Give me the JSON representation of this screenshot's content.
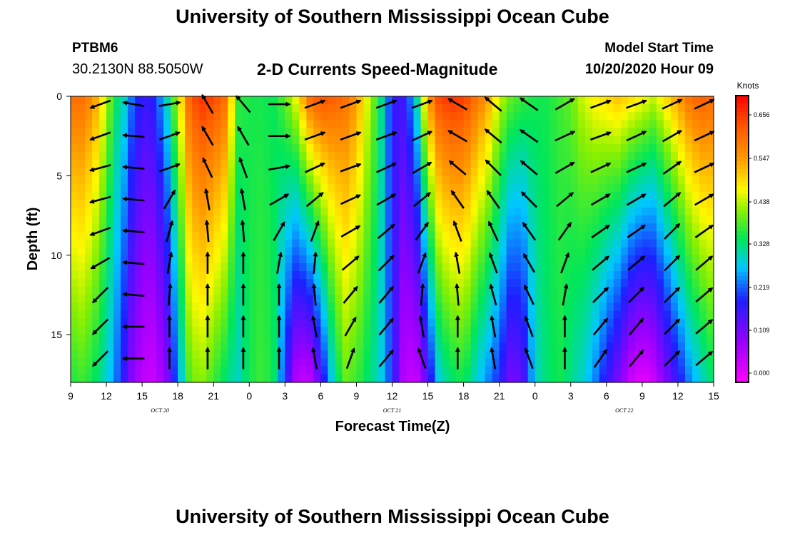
{
  "header": {
    "title": "University of Southern Mississippi Ocean Cube",
    "station_id": "PTBM6",
    "station_location": "30.2130N 88.5050W",
    "plot_title": "2-D Currents Speed-Magnitude",
    "model_start_label": "Model Start Time",
    "model_start_time": "10/20/2020 Hour 09"
  },
  "footer": {
    "title": "University of Southern Mississippi Ocean Cube"
  },
  "chart_data": {
    "type": "heatmap",
    "xlabel": "Forecast Time(Z)",
    "ylabel": "Depth (ft)",
    "x_range_hours": [
      0,
      54
    ],
    "x_ticks": [
      "9",
      "12",
      "15",
      "18",
      "21",
      "0",
      "3",
      "6",
      "9",
      "12",
      "15",
      "18",
      "21",
      "0",
      "3",
      "6",
      "9",
      "12",
      "15"
    ],
    "date_labels": [
      {
        "label": "OCT 20",
        "hour": 7.5
      },
      {
        "label": "OCT 21",
        "hour": 27
      },
      {
        "label": "OCT 22",
        "hour": 46.5
      }
    ],
    "y_range_ft": [
      0,
      18
    ],
    "y_ticks": [
      0,
      5,
      10,
      15
    ],
    "colorbar": {
      "unit": "Knots",
      "ticks": [
        "0.656",
        "0.547",
        "0.438",
        "0.328",
        "0.219",
        "0.109",
        "0.000"
      ],
      "range": [
        0.0,
        0.7
      ]
    },
    "speed_profile": {
      "hours": [
        0,
        1,
        2,
        3,
        3.7,
        4.3,
        5,
        6,
        7,
        8,
        9,
        10,
        11,
        12,
        13,
        14,
        15,
        16,
        17,
        18,
        19,
        20,
        21,
        22,
        23,
        24,
        25,
        26,
        27,
        28,
        29,
        30,
        31,
        32,
        33,
        34,
        35,
        36,
        37,
        38,
        39,
        40,
        41,
        42,
        43,
        44,
        45,
        46,
        47,
        48,
        49,
        50,
        51,
        52,
        53,
        54
      ],
      "surface": [
        0.6,
        0.6,
        0.55,
        0.45,
        0.35,
        0.33,
        0.25,
        0.18,
        0.2,
        0.3,
        0.45,
        0.62,
        0.66,
        0.64,
        0.6,
        0.38,
        0.36,
        0.36,
        0.35,
        0.4,
        0.48,
        0.6,
        0.64,
        0.62,
        0.6,
        0.55,
        0.45,
        0.35,
        0.18,
        0.18,
        0.3,
        0.55,
        0.65,
        0.66,
        0.65,
        0.6,
        0.55,
        0.45,
        0.4,
        0.38,
        0.36,
        0.36,
        0.38,
        0.4,
        0.45,
        0.48,
        0.5,
        0.52,
        0.5,
        0.48,
        0.45,
        0.5,
        0.55,
        0.6,
        0.62,
        0.6
      ],
      "bottom": [
        0.36,
        0.38,
        0.35,
        0.3,
        0.25,
        0.2,
        0.12,
        0.06,
        0.05,
        0.1,
        0.25,
        0.4,
        0.42,
        0.38,
        0.34,
        0.3,
        0.36,
        0.38,
        0.36,
        0.2,
        0.06,
        0.05,
        0.15,
        0.3,
        0.4,
        0.38,
        0.34,
        0.3,
        0.2,
        0.06,
        0.05,
        0.15,
        0.3,
        0.34,
        0.36,
        0.3,
        0.25,
        0.2,
        0.12,
        0.15,
        0.3,
        0.34,
        0.36,
        0.33,
        0.3,
        0.25,
        0.18,
        0.12,
        0.05,
        0.02,
        0.05,
        0.12,
        0.18,
        0.25,
        0.3,
        0.35
      ]
    },
    "vectors": {
      "note": "current direction in degrees (0 = east, 90 = north) at selected times, top to bottom depth rows",
      "depths_ft": [
        0.5,
        2.5,
        4.5,
        6.5,
        8.5,
        10.5,
        12.5,
        14.5,
        16.5
      ],
      "columns": [
        {
          "hour": 2.5,
          "dirs": [
            200,
            200,
            195,
            195,
            200,
            210,
            225,
            225,
            225
          ]
        },
        {
          "hour": 5.3,
          "dirs": [
            170,
            175,
            175,
            175,
            175,
            175,
            175,
            180,
            180
          ]
        },
        {
          "hour": 8.3,
          "dirs": [
            10,
            20,
            20,
            60,
            75,
            80,
            85,
            90,
            90
          ]
        },
        {
          "hour": 11.5,
          "dirs": [
            120,
            120,
            115,
            100,
            95,
            90,
            90,
            90,
            90
          ]
        },
        {
          "hour": 14.5,
          "dirs": [
            130,
            120,
            110,
            100,
            95,
            90,
            90,
            90,
            90
          ]
        },
        {
          "hour": 17.5,
          "dirs": [
            0,
            0,
            10,
            30,
            60,
            80,
            90,
            90,
            90
          ]
        },
        {
          "hour": 20.5,
          "dirs": [
            20,
            20,
            25,
            40,
            70,
            85,
            95,
            100,
            100
          ]
        },
        {
          "hour": 23.5,
          "dirs": [
            20,
            20,
            20,
            25,
            30,
            40,
            50,
            60,
            70
          ]
        },
        {
          "hour": 26.5,
          "dirs": [
            20,
            20,
            25,
            30,
            40,
            45,
            50,
            50,
            50
          ]
        },
        {
          "hour": 29.5,
          "dirs": [
            20,
            25,
            30,
            40,
            55,
            70,
            85,
            100,
            110
          ]
        },
        {
          "hour": 32.5,
          "dirs": [
            150,
            150,
            140,
            125,
            110,
            100,
            95,
            90,
            90
          ]
        },
        {
          "hour": 35.5,
          "dirs": [
            140,
            140,
            135,
            125,
            115,
            110,
            105,
            100,
            100
          ]
        },
        {
          "hour": 38.5,
          "dirs": [
            145,
            145,
            140,
            135,
            125,
            120,
            115,
            110,
            110
          ]
        },
        {
          "hour": 41.5,
          "dirs": [
            30,
            25,
            30,
            40,
            55,
            70,
            80,
            90,
            90
          ]
        },
        {
          "hour": 44.5,
          "dirs": [
            20,
            20,
            25,
            30,
            35,
            40,
            45,
            50,
            55
          ]
        },
        {
          "hour": 47.5,
          "dirs": [
            20,
            25,
            25,
            30,
            35,
            40,
            45,
            50,
            50
          ]
        },
        {
          "hour": 50.5,
          "dirs": [
            25,
            30,
            35,
            40,
            45,
            45,
            45,
            45,
            45
          ]
        },
        {
          "hour": 53.2,
          "dirs": [
            25,
            25,
            25,
            30,
            35,
            40,
            40,
            40,
            40
          ]
        }
      ]
    }
  }
}
